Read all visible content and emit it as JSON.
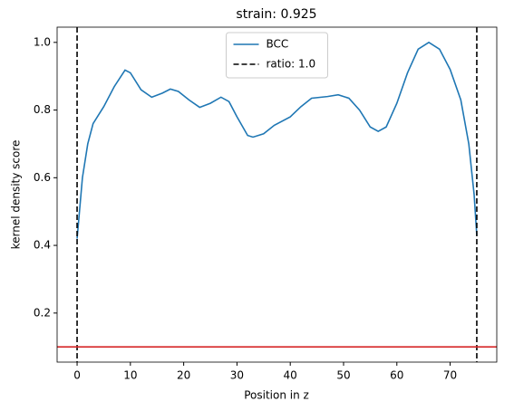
{
  "chart_data": {
    "type": "line",
    "title": "strain: 0.925",
    "xlabel": "Position in z",
    "ylabel": "kernel density score",
    "x": [
      0,
      1,
      2,
      3,
      5,
      7,
      9,
      10,
      12,
      14,
      16,
      17.5,
      19,
      21,
      23,
      25,
      27,
      28.5,
      30,
      32,
      33,
      35,
      37,
      40,
      42,
      44,
      47,
      49,
      51,
      53,
      55,
      56.5,
      58,
      60,
      62,
      64,
      66,
      68,
      70,
      72,
      73.5,
      74.5,
      75
    ],
    "series": [
      {
        "name": "BCC",
        "color": "#1f77b4",
        "values": [
          0.42,
          0.6,
          0.7,
          0.76,
          0.81,
          0.87,
          0.918,
          0.91,
          0.86,
          0.838,
          0.85,
          0.862,
          0.855,
          0.83,
          0.808,
          0.82,
          0.838,
          0.825,
          0.78,
          0.725,
          0.72,
          0.73,
          0.755,
          0.78,
          0.81,
          0.835,
          0.84,
          0.845,
          0.835,
          0.8,
          0.75,
          0.737,
          0.75,
          0.82,
          0.91,
          0.98,
          1.0,
          0.98,
          0.92,
          0.83,
          0.7,
          0.55,
          0.43
        ]
      }
    ],
    "vlines": {
      "name": "ratio: 1.0",
      "color": "#000000",
      "values": [
        0,
        75
      ]
    },
    "hline": {
      "value": 0.1,
      "color": "#d62728"
    },
    "xlim": [
      -3.75,
      78.75
    ],
    "xticks": [
      0,
      10,
      20,
      30,
      40,
      50,
      60,
      70
    ],
    "ylim": [
      0.055,
      1.045
    ],
    "yticks": [
      0.2,
      0.4,
      0.6,
      0.8,
      {
        "value": 1,
        "label": "1.0"
      }
    ],
    "legend": "upper center",
    "grid": false
  }
}
